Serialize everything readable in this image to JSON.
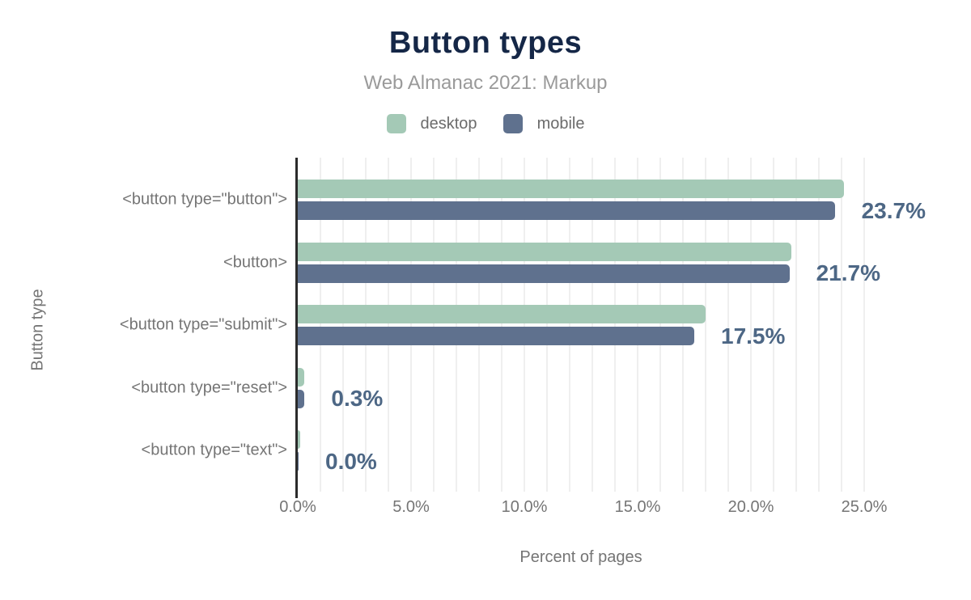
{
  "title": "Button types",
  "subtitle": "Web Almanac 2021: Markup",
  "legend": [
    {
      "label": "desktop",
      "color": "#a4c9b6"
    },
    {
      "label": "mobile",
      "color": "#5f718e"
    }
  ],
  "chart_data": {
    "type": "bar",
    "orientation": "horizontal",
    "title": "Button types",
    "subtitle": "Web Almanac 2021: Markup",
    "categories": [
      "<button type=\"button\">",
      "<button>",
      "<button type=\"submit\">",
      "<button type=\"reset\">",
      "<button type=\"text\">"
    ],
    "series": [
      {
        "name": "desktop",
        "color": "#a4c9b6",
        "values": [
          24.1,
          21.8,
          18.0,
          0.3,
          0.1
        ]
      },
      {
        "name": "mobile",
        "color": "#5f718e",
        "values": [
          23.7,
          21.7,
          17.5,
          0.3,
          0.0
        ]
      }
    ],
    "value_labels": [
      "23.7%",
      "21.7%",
      "17.5%",
      "0.3%",
      "0.0%"
    ],
    "xlabel": "Percent of pages",
    "ylabel": "Button type",
    "xlim": [
      0,
      25
    ],
    "xticks": [
      "0.0%",
      "5.0%",
      "10.0%",
      "15.0%",
      "20.0%",
      "25.0%"
    ],
    "xtick_values": [
      0,
      5,
      10,
      15,
      20,
      25
    ],
    "grid": "vertical minor gridlines every 1%",
    "legend_position": "top center"
  },
  "colors": {
    "title": "#152747",
    "subtitle": "#9a9a9a",
    "axis_text": "#757575",
    "value_label": "#4d6785",
    "gridline": "#efefef",
    "axis_line": "#2b2b2b",
    "background": "#ffffff"
  }
}
